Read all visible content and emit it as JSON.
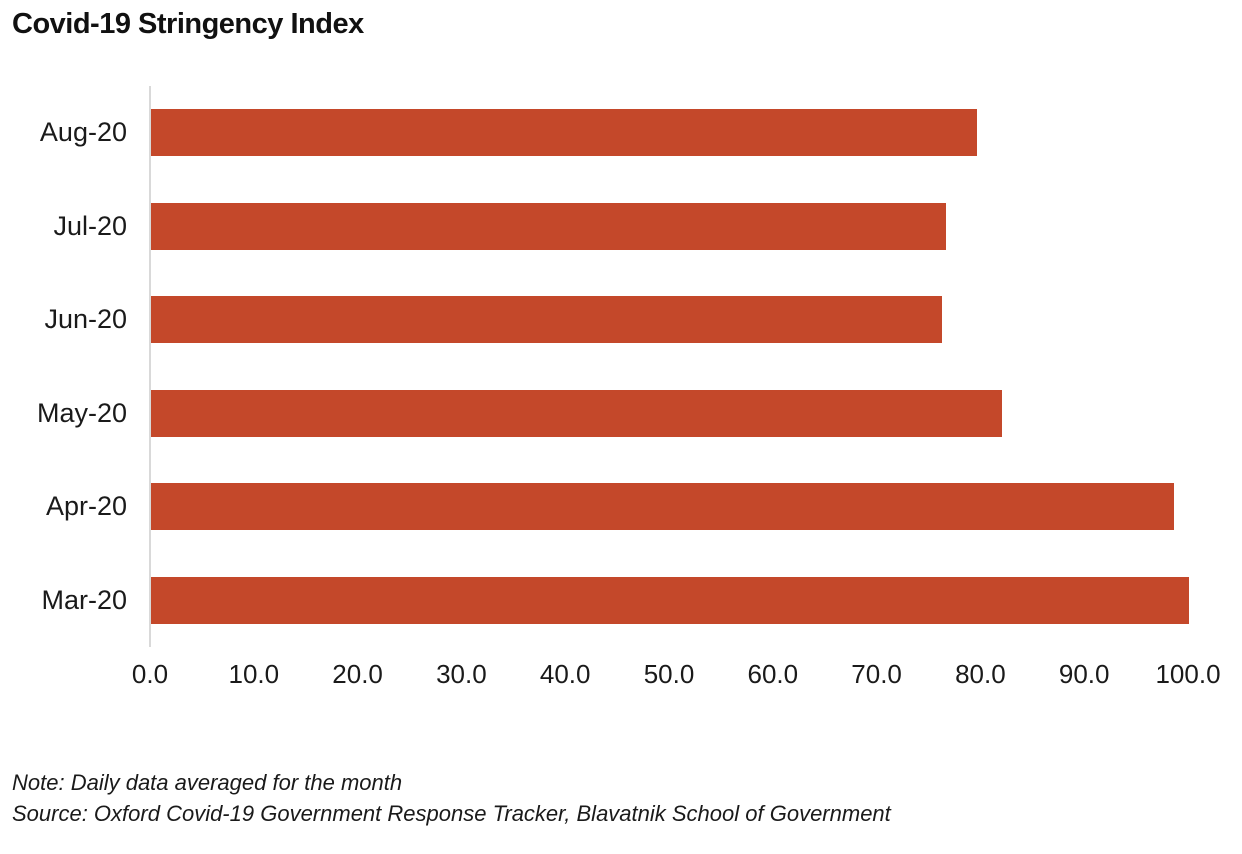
{
  "title": "Covid-19 Stringency Index",
  "chart_data": {
    "type": "bar",
    "orientation": "horizontal",
    "title": "Covid-19 Stringency Index",
    "categories": [
      "Aug-20",
      "Jul-20",
      "Jun-20",
      "May-20",
      "Apr-20",
      "Mar-20"
    ],
    "values": [
      79.6,
      76.6,
      76.2,
      82.0,
      98.6,
      100.0
    ],
    "xlabel": "",
    "ylabel": "",
    "xlim": [
      0,
      100
    ],
    "xtick_labels": [
      "0.0",
      "10.0",
      "20.0",
      "30.0",
      "40.0",
      "50.0",
      "60.0",
      "70.0",
      "80.0",
      "90.0",
      "100.0"
    ],
    "grid": false,
    "legend": "none",
    "bar_color": "#c4482a",
    "axis_line_color": "#d9d9d9",
    "text_color": "#1a1a1a"
  },
  "footnotes": {
    "note": "Note: Daily data averaged for the month",
    "source": "Source: Oxford Covid-19 Government Response Tracker, Blavatnik School of Government"
  }
}
